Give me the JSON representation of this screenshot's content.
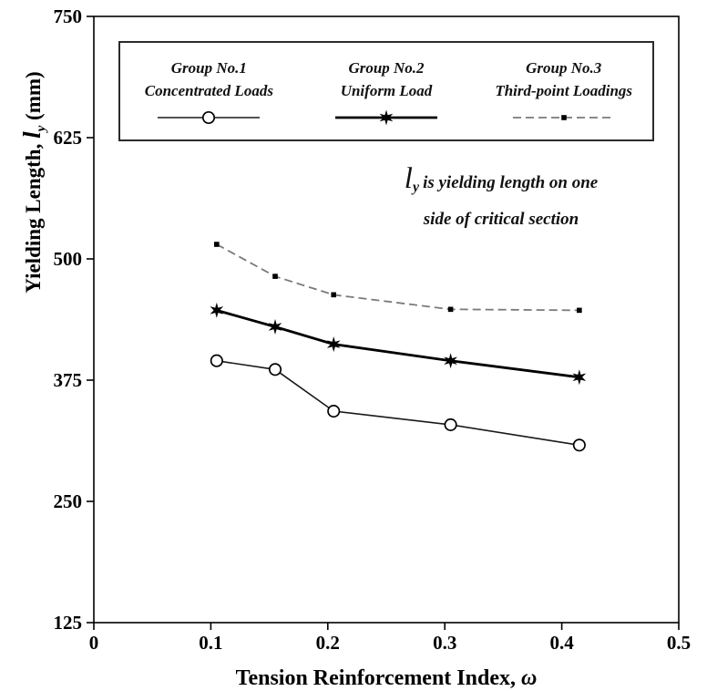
{
  "chart_data": {
    "type": "line",
    "title": "",
    "xlabel_text": "Tension Reinforcement Index, ",
    "xlabel_symbol": "ω",
    "ylabel_prefix": "Yielding Length, ",
    "ylabel_math": "l",
    "ylabel_sub": "y",
    "ylabel_suffix": " (mm)",
    "xlim": [
      0,
      0.5
    ],
    "ylim": [
      125,
      750
    ],
    "xticks": [
      0,
      0.1,
      0.2,
      0.3,
      0.4,
      0.5
    ],
    "xtick_labels": [
      "0",
      "0.1",
      "0.2",
      "0.3",
      "0.4",
      "0.5"
    ],
    "yticks": [
      125,
      250,
      375,
      500,
      625,
      750
    ],
    "ytick_labels": [
      "125",
      "250",
      "375",
      "500",
      "625",
      "750"
    ],
    "grid": false,
    "legend_position": "top-inside",
    "x": [
      0.105,
      0.155,
      0.205,
      0.305,
      0.415
    ],
    "series": [
      {
        "name": "Group No.1",
        "subtitle": "Concentrated Loads",
        "marker": "circle-open",
        "marker_color": "#000000",
        "line": "solid",
        "line_color": "#1a1a1a",
        "width": 1.6,
        "values": [
          395,
          386,
          343,
          329,
          308
        ]
      },
      {
        "name": "Group No.2",
        "subtitle": "Uniform Load",
        "marker": "star",
        "marker_color": "#000000",
        "line": "solid",
        "line_color": "#000000",
        "width": 2.8,
        "values": [
          447,
          430,
          412,
          395,
          378
        ]
      },
      {
        "name": "Group No.3",
        "subtitle": "Third-point Loadings",
        "marker": "square",
        "marker_color": "#000000",
        "line": "dashed",
        "line_color": "#7a7a7a",
        "width": 1.8,
        "values": [
          515,
          482,
          463,
          448,
          447
        ]
      }
    ],
    "annotation_math": "l",
    "annotation_sub": "y",
    "annotation_line1": "is yielding length on one",
    "annotation_line2": "side of critical section"
  }
}
